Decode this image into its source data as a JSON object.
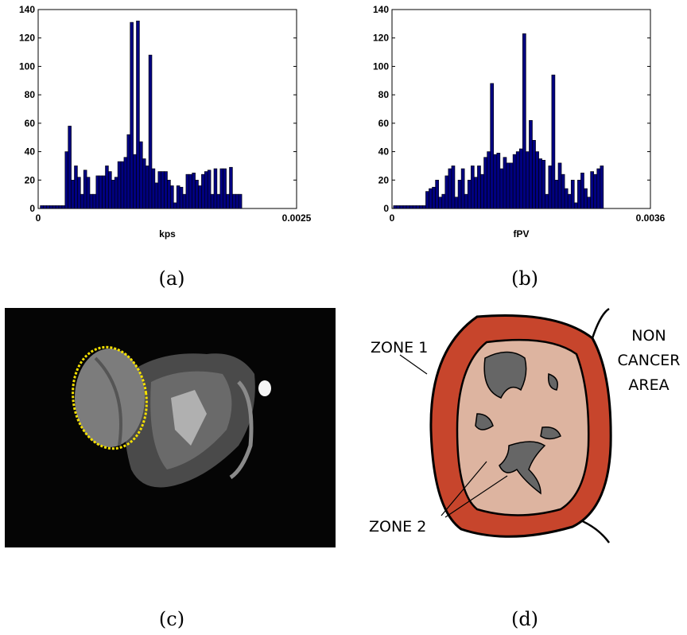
{
  "chart_data": [
    {
      "type": "histogram",
      "xlabel": "kps",
      "color": "#000080",
      "bins": [
        2e-05,
        5e-05,
        8e-05,
        0.00011,
        0.00014,
        0.00017,
        0.0002,
        0.00023,
        0.00026,
        0.00029,
        0.00032,
        0.00035,
        0.00038,
        0.00041,
        0.00044,
        0.00047,
        0.0005,
        0.00053,
        0.00056,
        0.00059,
        0.00062,
        0.00065,
        0.00068,
        0.00071,
        0.00074,
        0.00077,
        0.0008,
        0.00083,
        0.00086,
        0.00089,
        0.00092,
        0.00095,
        0.00098,
        0.00101,
        0.00104,
        0.00107,
        0.0011,
        0.00113,
        0.00116,
        0.00119,
        0.00122,
        0.00125,
        0.00128,
        0.00131,
        0.00134,
        0.00137,
        0.0014,
        0.00143,
        0.00146,
        0.00149,
        0.00152,
        0.00155,
        0.00158,
        0.00161,
        0.00164,
        0.00167,
        0.0017,
        0.00173,
        0.00176,
        0.00179,
        0.00182,
        0.00185,
        0.00188,
        0.00191,
        0.00194,
        0.00197
      ],
      "values": [
        2,
        2,
        2,
        2,
        2,
        2,
        2,
        2,
        40,
        58,
        20,
        30,
        22,
        10,
        27,
        22,
        10,
        10,
        23,
        23,
        23,
        30,
        26,
        20,
        22,
        33,
        33,
        36,
        52,
        131,
        38,
        132,
        47,
        35,
        30,
        108,
        28,
        18,
        26,
        26,
        26,
        20,
        16,
        4,
        16,
        15,
        10,
        24,
        24,
        25,
        20,
        16,
        24,
        26,
        27,
        10,
        28,
        10,
        28,
        28,
        10,
        29,
        10,
        10,
        10
      ],
      "xlim": [
        0,
        0.0025
      ],
      "xticks": [
        0,
        0.0025
      ],
      "ylim": [
        0,
        140
      ],
      "yticks": [
        0,
        20,
        40,
        60,
        80,
        100,
        120,
        140
      ]
    },
    {
      "type": "histogram",
      "xlabel": "fPV",
      "color": "#000080",
      "bins": [
        2e-05,
        6.5e-05,
        0.00011,
        0.000155,
        0.0002,
        0.000245,
        0.00029,
        0.000335,
        0.00038,
        0.000425,
        0.00047,
        0.000515,
        0.00056,
        0.000605,
        0.00065,
        0.000695,
        0.00074,
        0.000785,
        0.00083,
        0.000875,
        0.00092,
        0.000965,
        0.00101,
        0.001055,
        0.0011,
        0.001145,
        0.00119,
        0.001235,
        0.00128,
        0.001325,
        0.00137,
        0.001415,
        0.00146,
        0.001505,
        0.00155,
        0.001595,
        0.00164,
        0.001685,
        0.00173,
        0.001775,
        0.00182,
        0.001865,
        0.00191,
        0.001955,
        0.002,
        0.002045,
        0.00209,
        0.002135,
        0.00218,
        0.002225,
        0.00227,
        0.002315,
        0.00236,
        0.002405,
        0.00245,
        0.002495,
        0.00254,
        0.002585,
        0.00263,
        0.002675,
        0.00272,
        0.002765,
        0.00281,
        0.002855,
        0.0029,
        0.002945
      ],
      "values": [
        2,
        2,
        2,
        2,
        2,
        2,
        2,
        2,
        2,
        2,
        12,
        14,
        15,
        20,
        8,
        10,
        23,
        28,
        30,
        8,
        20,
        28,
        10,
        20,
        30,
        22,
        30,
        24,
        36,
        40,
        88,
        38,
        39,
        28,
        36,
        32,
        32,
        38,
        40,
        42,
        123,
        40,
        62,
        48,
        40,
        35,
        34,
        10,
        30,
        94,
        20,
        32,
        24,
        14,
        10,
        20,
        4,
        20,
        25,
        14,
        8,
        26,
        24,
        28,
        30
      ],
      "xlim": [
        0,
        0.0036
      ],
      "xticks": [
        0,
        0.0036
      ],
      "ylim": [
        0,
        140
      ],
      "yticks": [
        0,
        20,
        40,
        60,
        80,
        100,
        120,
        140
      ]
    }
  ],
  "captions": [
    "(a)",
    "(b)",
    "(c)",
    "(d)"
  ],
  "diagram": {
    "zone1": "ZONE 1",
    "zone2": "ZONE 2",
    "outside": [
      "NON",
      "CANCER",
      "AREA"
    ]
  }
}
